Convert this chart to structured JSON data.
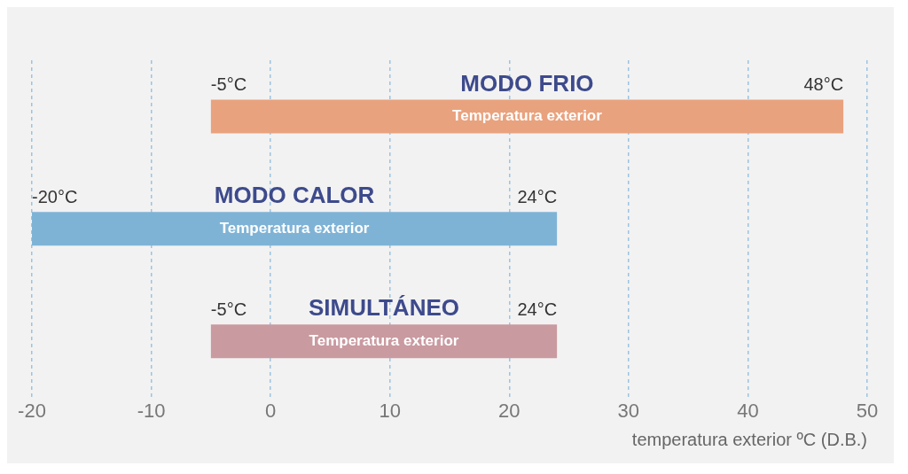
{
  "chart_data": {
    "type": "bar",
    "orientation": "horizontal",
    "xlabel": "temperatura exterior ºC (D.B.)",
    "categories": [
      "MODO FRIO",
      "MODO CALOR",
      "SIMULTÁNEO"
    ],
    "base": [
      -5,
      -20,
      -5
    ],
    "values": [
      53,
      44,
      29
    ],
    "colors": [
      "#e9a27e",
      "#7fb3d6",
      "#c99aa0"
    ],
    "xlim": [
      -20,
      50
    ],
    "xticks": [
      -20,
      -10,
      0,
      10,
      20,
      30,
      40,
      50
    ],
    "grid": "x",
    "annotations": [
      {
        "text": "-5°C",
        "x": -5,
        "y": "MODO FRIO"
      },
      {
        "text": "48°C",
        "x": 48,
        "y": "MODO FRIO"
      },
      "Temperatura exterior",
      {
        "text": "-20°C",
        "x": -20,
        "y": "MODO CALOR"
      },
      {
        "text": "24°C",
        "x": 24,
        "y": "MODO CALOR"
      },
      "Temperatura exterior",
      {
        "text": "-5°C",
        "x": -5,
        "y": "SIMULTÁNEO"
      },
      {
        "text": "24°C",
        "x": 24,
        "y": "SIMULTÁNEO"
      },
      "Temperatura exterior"
    ]
  }
}
